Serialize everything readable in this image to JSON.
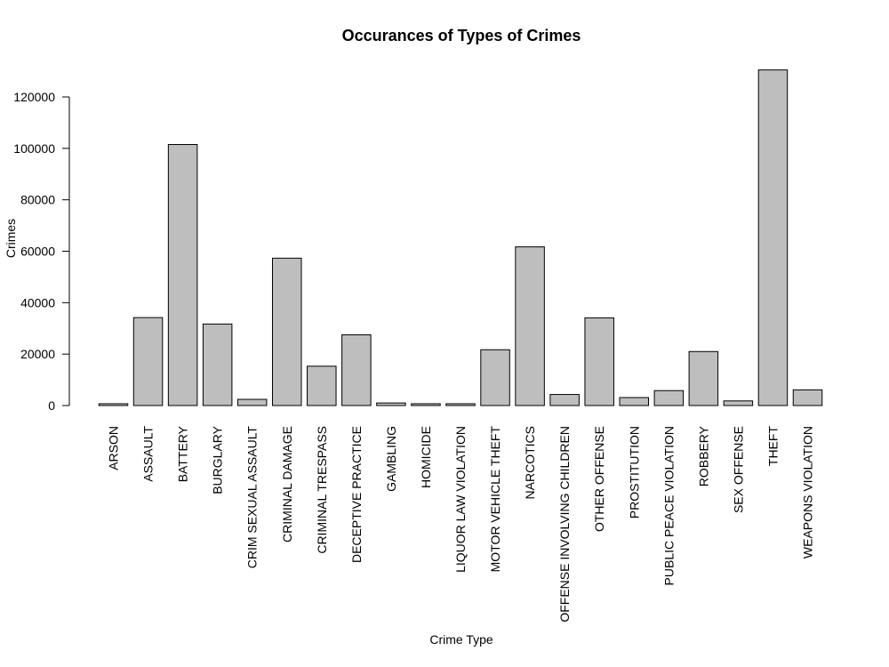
{
  "chart_data": {
    "type": "bar",
    "title": "Occurances of Types of Crimes",
    "xlabel": "Crime Type",
    "ylabel": "Crimes",
    "ylim": [
      0,
      130000
    ],
    "yticks": [
      0,
      20000,
      40000,
      60000,
      80000,
      100000,
      120000
    ],
    "grid": false,
    "bar_color": "#bebebe",
    "categories": [
      "ARSON",
      "ASSAULT",
      "BATTERY",
      "BURGLARY",
      "CRIM SEXUAL ASSAULT",
      "CRIMINAL DAMAGE",
      "CRIMINAL TRESPASS",
      "DECEPTIVE PRACTICE",
      "GAMBLING",
      "HOMICIDE",
      "LIQUOR LAW VIOLATION",
      "MOTOR VEHICLE THEFT",
      "NARCOTICS",
      "OFFENSE INVOLVING CHILDREN",
      "OTHER OFFENSE",
      "PROSTITUTION",
      "PUBLIC PEACE VIOLATION",
      "ROBBERY",
      "SEX OFFENSE",
      "THEFT",
      "WEAPONS VIOLATION"
    ],
    "values": [
      700,
      34200,
      101500,
      31700,
      2400,
      57300,
      15300,
      27500,
      1000,
      700,
      700,
      21700,
      61700,
      4300,
      34100,
      3100,
      5800,
      21000,
      1800,
      130500,
      6100
    ]
  }
}
